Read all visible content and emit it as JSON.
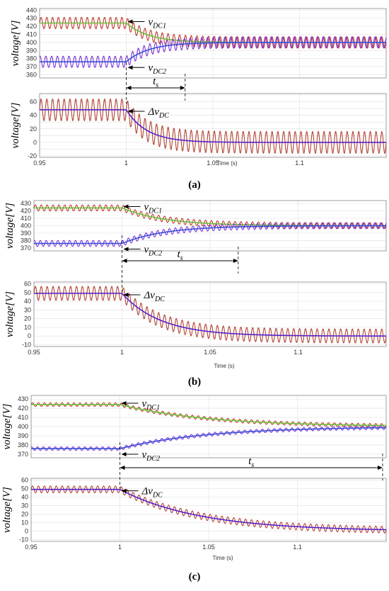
{
  "chart_data": [
    {
      "caption": "(a)",
      "x_axis_label": "Time (s)",
      "x_ticks": [
        "0.95",
        "1",
        "1.05",
        "1.1"
      ],
      "xlim": [
        0.95,
        1.15
      ],
      "ts_end": 1.034,
      "tau": 0.012,
      "upper": {
        "type": "line",
        "ylabel": "voltage[V]",
        "yticks": [
          "360",
          "370",
          "380",
          "390",
          "400",
          "410",
          "420",
          "430",
          "440"
        ],
        "ylim": [
          356,
          442
        ],
        "ripple_amp": 7,
        "labels": {
          "v1": "v",
          "v1_sub": "DC1",
          "v2": "v",
          "v2_sub": "DC2",
          "ts": "t",
          "ts_sub": "s"
        },
        "series": [
          {
            "name": "vDC1",
            "start": 424,
            "end": 400,
            "color": "#6bbf3c",
            "ripple_color": "#c0392b"
          },
          {
            "name": "vDC2",
            "start": 376,
            "end": 400,
            "color": "#3a4fd8",
            "ripple_color": "#7b33d6"
          }
        ]
      },
      "lower": {
        "type": "line",
        "ylabel": "voltage[V]",
        "yticks": [
          "-20",
          "-10",
          "0",
          "10",
          "20",
          "30",
          "40",
          "50",
          "60",
          "70"
        ],
        "tick_labels_shown": [
          "-20",
          "0",
          "20",
          "40",
          "60"
        ],
        "ylim": [
          -22,
          72
        ],
        "ripple_amp": 16,
        "labels": {
          "dv": "Δv",
          "dv_sub": "DC"
        },
        "series": [
          {
            "name": "ΔvDC",
            "start": 48,
            "end": 0,
            "color": "#5522cc",
            "ripple_color": "#b34433"
          }
        ]
      }
    },
    {
      "caption": "(b)",
      "x_axis_label": "Time (s)",
      "x_ticks": [
        "0.95",
        "1",
        "1.05",
        "1.1"
      ],
      "xlim": [
        0.95,
        1.15
      ],
      "ts_end": 1.066,
      "tau": 0.022,
      "upper": {
        "type": "line",
        "ylabel": "voltage[V]",
        "yticks": [
          "370",
          "380",
          "390",
          "400",
          "410",
          "420",
          "430"
        ],
        "ylim": [
          366,
          434
        ],
        "ripple_amp": 4,
        "labels": {
          "v1": "v",
          "v1_sub": "DC1",
          "v2": "v",
          "v2_sub": "DC2",
          "ts": "t",
          "ts_sub": "s"
        },
        "series": [
          {
            "name": "vDC1",
            "start": 424,
            "end": 400,
            "color": "#6bbf3c",
            "ripple_color": "#c0392b"
          },
          {
            "name": "vDC2",
            "start": 376,
            "end": 400,
            "color": "#3a4fd8",
            "ripple_color": "#7b33d6"
          }
        ]
      },
      "lower": {
        "type": "line",
        "ylabel": "voltage[V]",
        "yticks": [
          "-10",
          "0",
          "10",
          "20",
          "30",
          "40",
          "50",
          "60"
        ],
        "ylim": [
          -12,
          62
        ],
        "ripple_amp": 8,
        "labels": {
          "dv": "Δv",
          "dv_sub": "DC"
        },
        "series": [
          {
            "name": "ΔvDC",
            "start": 49,
            "end": 0,
            "color": "#5522cc",
            "ripple_color": "#b34433"
          }
        ]
      }
    },
    {
      "caption": "(c)",
      "x_axis_label": "Time (s)",
      "x_ticks": [
        "0.95",
        "1",
        "1.05",
        "1.1"
      ],
      "xlim": [
        0.95,
        1.15
      ],
      "ts_end": 1.148,
      "tau": 0.045,
      "upper": {
        "type": "line",
        "ylabel": "voltage[V]",
        "yticks": [
          "370",
          "380",
          "390",
          "400",
          "410",
          "420",
          "430"
        ],
        "ylim": [
          366,
          434
        ],
        "ripple_amp": 2,
        "labels": {
          "v1": "v",
          "v1_sub": "DC1",
          "v2": "v",
          "v2_sub": "DC2",
          "ts": "t",
          "ts_sub": "s"
        },
        "series": [
          {
            "name": "vDC1",
            "start": 424,
            "end": 400,
            "color": "#6bbf3c",
            "ripple_color": "#c0392b"
          },
          {
            "name": "vDC2",
            "start": 376,
            "end": 400,
            "color": "#3a4fd8",
            "ripple_color": "#7b33d6"
          }
        ]
      },
      "lower": {
        "type": "line",
        "ylabel": "voltage[V]",
        "yticks": [
          "-10",
          "0",
          "10",
          "20",
          "30",
          "40",
          "50",
          "60"
        ],
        "ylim": [
          -12,
          62
        ],
        "ripple_amp": 4,
        "labels": {
          "dv": "Δv",
          "dv_sub": "DC"
        },
        "series": [
          {
            "name": "ΔvDC",
            "start": 49,
            "end": 0,
            "color": "#5522cc",
            "ripple_color": "#b34433"
          }
        ]
      }
    }
  ],
  "ripple_frequency_hz": 300,
  "step_time": 1.0
}
